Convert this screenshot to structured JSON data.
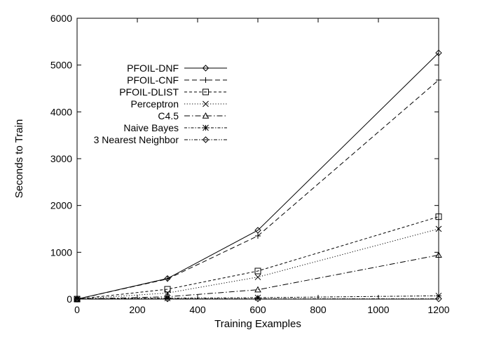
{
  "chart_data": {
    "type": "line",
    "title": "",
    "xlabel": "Training Examples",
    "ylabel": "Seconds to Train",
    "xlim": [
      0,
      1200
    ],
    "ylim": [
      0,
      6000
    ],
    "xticks": [
      0,
      200,
      400,
      600,
      800,
      1000,
      1200
    ],
    "yticks": [
      0,
      1000,
      2000,
      3000,
      4000,
      5000,
      6000
    ],
    "grid": false,
    "legend_position": "top-left",
    "x": [
      0,
      300,
      600,
      1200
    ],
    "series": [
      {
        "name": "PFOIL-DNF",
        "values": [
          0,
          440,
          1470,
          5260
        ],
        "marker": "diamond",
        "dash": "solid"
      },
      {
        "name": "PFOIL-CNF",
        "values": [
          0,
          430,
          1350,
          4680
        ],
        "marker": "plus",
        "dash": "long-dash"
      },
      {
        "name": "PFOIL-DLIST",
        "values": [
          0,
          210,
          600,
          1760
        ],
        "marker": "square",
        "dash": "short-dash"
      },
      {
        "name": "Perceptron",
        "values": [
          0,
          130,
          470,
          1500
        ],
        "marker": "cross",
        "dash": "dotted"
      },
      {
        "name": "C4.5",
        "values": [
          0,
          50,
          200,
          940
        ],
        "marker": "triangle",
        "dash": "dash-dot"
      },
      {
        "name": "Naive Bayes",
        "values": [
          0,
          20,
          30,
          70
        ],
        "marker": "star",
        "dash": "dash-dot-short"
      },
      {
        "name": "3 Nearest Neighbor",
        "values": [
          0,
          5,
          5,
          5
        ],
        "marker": "diamond",
        "dash": "dash-dot-dot"
      }
    ]
  }
}
